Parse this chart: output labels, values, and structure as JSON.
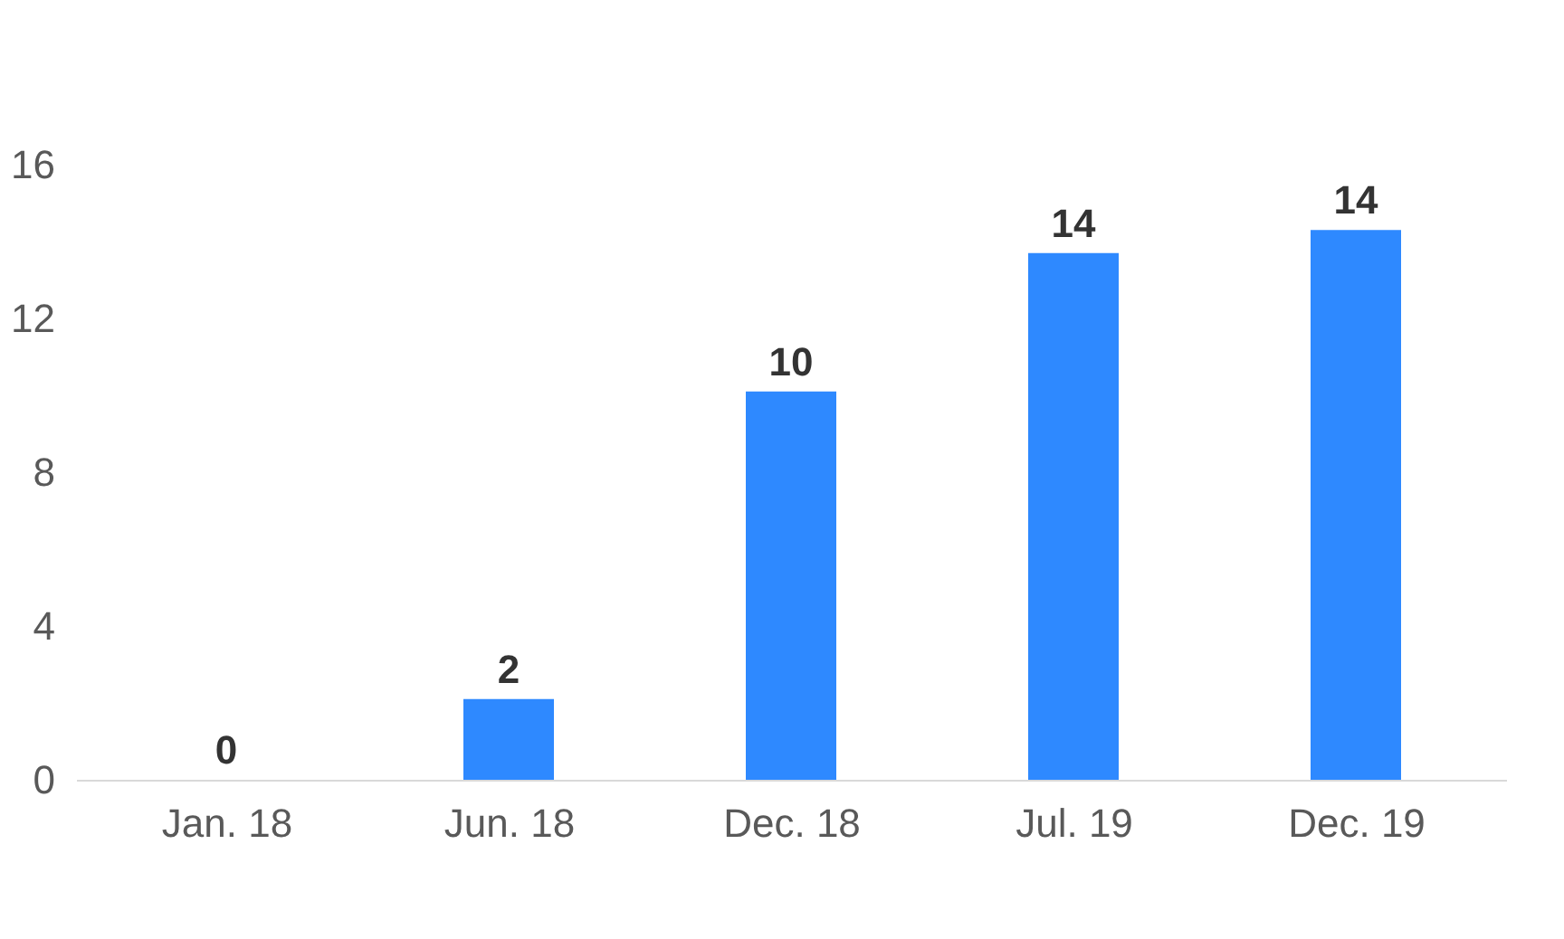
{
  "chart_data": {
    "type": "bar",
    "categories": [
      "Jan. 18",
      "Jun. 18",
      "Dec. 18",
      "Jul. 19",
      "Dec. 19"
    ],
    "values": [
      0,
      2.1,
      10.1,
      13.7,
      14.3
    ],
    "value_labels": [
      "0",
      "2",
      "10",
      "14",
      "14"
    ],
    "color": "#2e89ff",
    "ylim": [
      0,
      16
    ],
    "yticks": [
      0,
      4,
      8,
      12,
      16
    ],
    "grid": false
  }
}
